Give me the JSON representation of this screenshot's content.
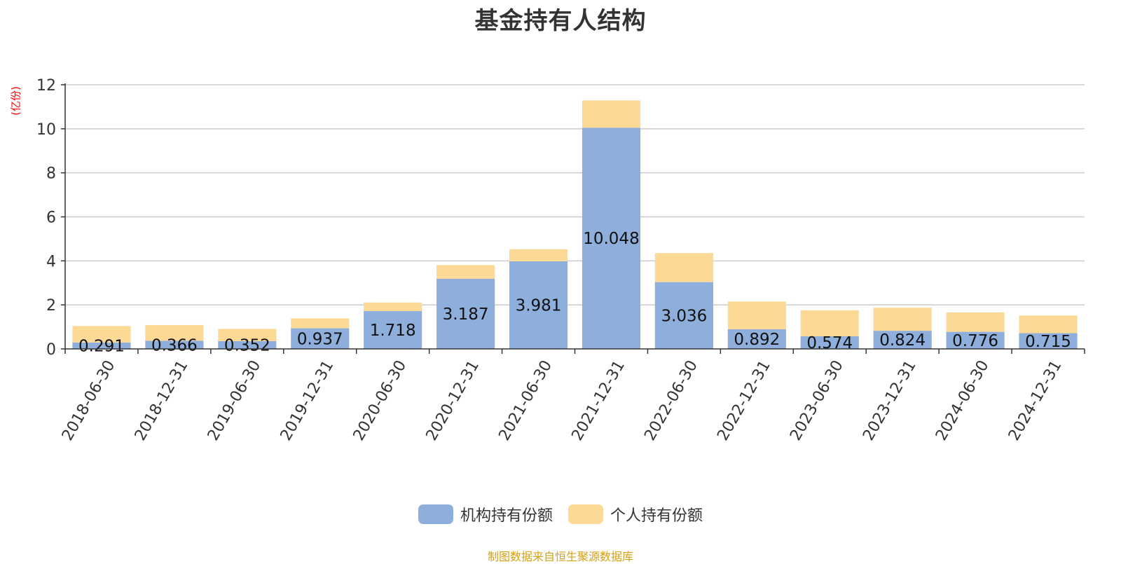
{
  "chart_data": {
    "type": "bar",
    "stacked": true,
    "title": "基金持有人结构",
    "y_unit": "(亿份)",
    "categories": [
      "2018-06-30",
      "2018-12-31",
      "2019-06-30",
      "2019-12-31",
      "2020-06-30",
      "2020-12-31",
      "2021-06-30",
      "2021-12-31",
      "2022-06-30",
      "2022-12-31",
      "2023-06-30",
      "2023-12-31",
      "2024-06-30",
      "2024-12-31"
    ],
    "series": [
      {
        "name": "机构持有份额",
        "color": "#8eaedb",
        "values": [
          0.291,
          0.366,
          0.352,
          0.937,
          1.718,
          3.187,
          3.981,
          10.048,
          3.036,
          0.892,
          0.574,
          0.824,
          0.776,
          0.715
        ],
        "labels": [
          "0.291",
          "0.366",
          "0.352",
          "0.937",
          "1.718",
          "3.187",
          "3.981",
          "10.048",
          "3.036",
          "0.892",
          "0.574",
          "0.824",
          "0.776",
          "0.715"
        ]
      },
      {
        "name": "个人持有份额",
        "color": "#fdd996",
        "values": [
          0.75,
          0.72,
          0.56,
          0.45,
          0.39,
          0.62,
          0.55,
          1.24,
          1.32,
          1.26,
          1.18,
          1.05,
          0.88,
          0.8
        ]
      }
    ],
    "ylim": [
      0,
      12
    ],
    "yticks": [
      "0",
      "2",
      "4",
      "6",
      "8",
      "10",
      "12"
    ],
    "grid": true,
    "legend_position": "bottom"
  },
  "source_note": "制图数据来自恒生聚源数据库"
}
